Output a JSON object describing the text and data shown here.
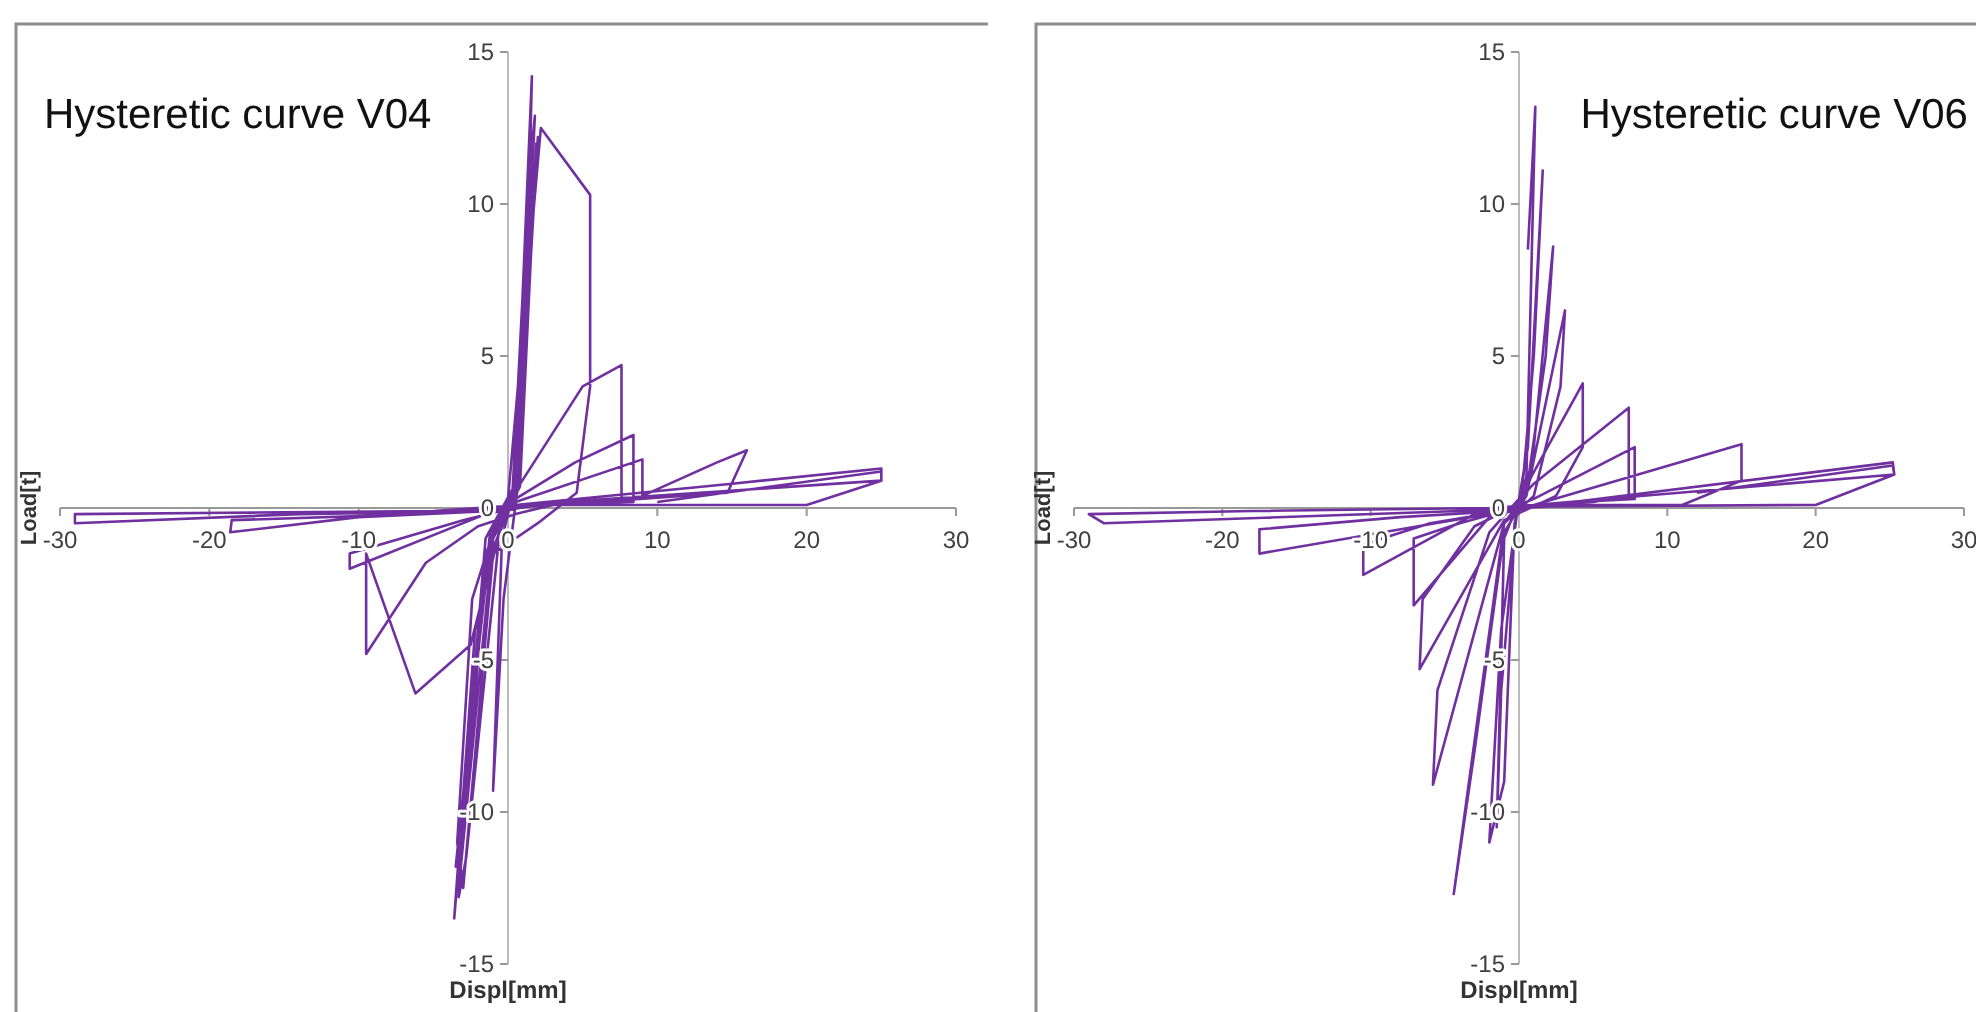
{
  "chart_data": [
    {
      "type": "line",
      "title": "Hysteretic curve V04",
      "xlabel": "Displ[mm]",
      "ylabel": "Load[t]",
      "xlim": [
        -30,
        30
      ],
      "ylim": [
        -15,
        15
      ],
      "xticks": [
        -30,
        -20,
        -10,
        0,
        10,
        20,
        30
      ],
      "yticks": [
        -15,
        -10,
        -5,
        0,
        5,
        10,
        15
      ],
      "grid": false,
      "marker": "none",
      "line_style": "solid",
      "series": [
        {
          "color": "#7030a0",
          "x": [
            0.8,
            1.3,
            0.6,
            -0.3,
            -1,
            -0.4,
            0.6,
            1.8,
            1.4,
            0.3,
            -1,
            -3.2,
            -1.6,
            0.4,
            1.6,
            1.2,
            0.5,
            -1.5,
            -3.6,
            -2.2,
            0,
            2.2,
            5.5,
            5.5,
            4.6,
            2,
            -1,
            -3,
            -3.4,
            -2.4,
            -1,
            0.5,
            1.9,
            1.7,
            0.8,
            -0.5,
            -2.8,
            -3.3,
            -2.5,
            -1.2,
            0.6,
            2,
            1.5,
            0.4,
            -1.2,
            -3.5,
            -2.6,
            -1.5,
            0.3,
            5,
            7.6,
            7.6,
            3,
            0.5,
            -2,
            -5.5,
            -9.5,
            -9.5,
            -6.2,
            -2.5,
            -0.5,
            0.5,
            4.5,
            8.4,
            8.4,
            2,
            -0.5,
            -3,
            -10.6,
            -10.6,
            -2,
            0.5,
            9,
            9,
            14,
            16,
            14.7,
            6,
            0,
            -6,
            -18.5,
            -18.6,
            -10,
            -1,
            0.5,
            15,
            25,
            25,
            20,
            1,
            -5,
            -29,
            -29,
            -14,
            -1,
            0.5,
            25,
            25,
            10
          ],
          "values": [
            5,
            9.5,
            0.5,
            -3,
            -9.3,
            -1,
            1,
            12.9,
            11,
            0.5,
            -1,
            -12,
            -2,
            0.3,
            14.2,
            6,
            0.8,
            -1,
            -13.5,
            -4,
            0.3,
            12.5,
            10.3,
            4,
            0.5,
            -0.5,
            -1.5,
            -12.5,
            -11,
            -3,
            -0.8,
            0.6,
            12,
            10,
            0.7,
            -0.5,
            -11.5,
            -12.8,
            -7,
            -1.2,
            0.5,
            12.2,
            8,
            0.6,
            -0.8,
            -11.8,
            -9,
            -1.5,
            0.4,
            4,
            4.7,
            0.3,
            0.1,
            -0.2,
            -0.6,
            -1.8,
            -4.8,
            -1.5,
            -6.1,
            -4.5,
            -0.6,
            0.3,
            1.5,
            2.4,
            0.2,
            0.1,
            -0.1,
            -0.4,
            -1.5,
            -2,
            -0.3,
            0.2,
            1.6,
            0.4,
            1.5,
            1.9,
            0.5,
            0.2,
            0,
            -0.2,
            -0.4,
            -0.8,
            -0.3,
            -0.1,
            0.1,
            0.8,
            1.3,
            0.9,
            0.1,
            0.1,
            -0.1,
            -0.2,
            -0.5,
            -0.2,
            -0.1,
            0.1,
            0.9,
            1.2,
            0.2
          ]
        }
      ]
    },
    {
      "type": "line",
      "title": "Hysteretic curve V06",
      "xlabel": "Displ[mm]",
      "ylabel": "Load[t]",
      "xlim": [
        -30,
        30
      ],
      "ylim": [
        -15,
        15
      ],
      "xticks": [
        -30,
        -20,
        -10,
        0,
        10,
        20,
        30
      ],
      "yticks": [
        -15,
        -10,
        -5,
        0,
        5,
        10,
        15
      ],
      "grid": false,
      "marker": "none",
      "line_style": "solid",
      "series": [
        {
          "color": "#7030a0",
          "x": [
            0.6,
            1.1,
            0.5,
            -0.3,
            -1,
            -2,
            -1.2,
            0,
            0.6,
            1.6,
            1,
            0.2,
            -1,
            -1.5,
            -1.2,
            -0.2,
            0.8,
            2.3,
            1.8,
            0.5,
            -1,
            -4.4,
            -3,
            -1,
            0.5,
            3.1,
            2.8,
            1,
            -1,
            -5.8,
            -5.5,
            -2,
            0,
            4.3,
            4.3,
            2.5,
            -1,
            -6.7,
            -6.5,
            -3,
            -0.5,
            1,
            7.4,
            7.4,
            5,
            1,
            -2,
            -7.1,
            -7.1,
            -4,
            -1,
            1,
            7.8,
            7.8,
            4,
            0,
            -3,
            -10.5,
            -10.5,
            -6,
            -1,
            1,
            15,
            15,
            11,
            2,
            -2,
            -17.5,
            -17.5,
            -8,
            -1,
            2,
            25.2,
            25.3,
            20,
            2,
            -4,
            -28,
            -29,
            -18,
            -2,
            1,
            25.3,
            25.2,
            12
          ],
          "values": [
            8.5,
            13.2,
            1,
            -0.5,
            -9,
            -11,
            -4,
            0.3,
            2,
            11.1,
            5,
            0.5,
            -1,
            -10.5,
            -6,
            -0.3,
            1,
            8.6,
            5,
            0.5,
            -0.5,
            -12.7,
            -8,
            -0.8,
            0.4,
            6.5,
            4,
            0.4,
            -0.5,
            -9.1,
            -6,
            -0.8,
            0.3,
            4.1,
            2,
            0.4,
            -0.4,
            -5.3,
            -3,
            -0.6,
            0,
            0.8,
            3.3,
            0.4,
            0.2,
            0.1,
            -0.3,
            -3.2,
            -1,
            -0.5,
            -0.1,
            0.3,
            2,
            0.3,
            0.2,
            0,
            -0.2,
            -2.2,
            -1.2,
            -0.5,
            -0.1,
            0.1,
            2.1,
            0.9,
            0.1,
            0.1,
            -0.2,
            -1.5,
            -0.7,
            -0.3,
            -0.1,
            0.1,
            1.5,
            1.1,
            0.1,
            0.05,
            -0.1,
            -0.5,
            -0.2,
            -0.1,
            0,
            0.1,
            1.1,
            1.4,
            0.5
          ]
        }
      ]
    }
  ]
}
